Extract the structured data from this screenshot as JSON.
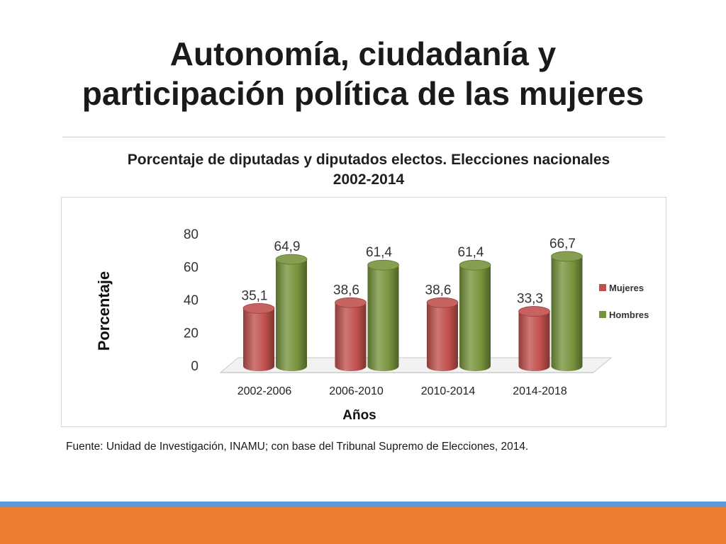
{
  "slide": {
    "title_line1": "Autonomía, ciudadanía y",
    "title_line2": "participación política de las mujeres",
    "source": "Fuente: Unidad de Investigación, INAMU; con base del Tribunal Supremo de Elecciones, 2014."
  },
  "chart_data": {
    "type": "bar",
    "title_line1": "Porcentaje de diputadas y diputados electos. Elecciones nacionales",
    "title_line2": "2002-2014",
    "xlabel": "Años",
    "ylabel": "Porcentaje",
    "categories": [
      "2002-2006",
      "2006-2010",
      "2010-2014",
      "2014-2018"
    ],
    "series": [
      {
        "name": "Mujeres",
        "values": [
          35.1,
          38.6,
          38.6,
          33.3
        ],
        "labels": [
          "35,1",
          "38,6",
          "38,6",
          "33,3"
        ],
        "color": "#c0504d"
      },
      {
        "name": "Hombres",
        "values": [
          64.9,
          61.4,
          61.4,
          66.7
        ],
        "labels": [
          "64,9",
          "61,4",
          "61,4",
          "66,7"
        ],
        "color": "#77933c"
      }
    ],
    "ylim": [
      0,
      80
    ],
    "yticks": [
      "0",
      "20",
      "40",
      "60",
      "80"
    ],
    "grid": false,
    "legend": "right",
    "style": "3d-cylinder"
  }
}
